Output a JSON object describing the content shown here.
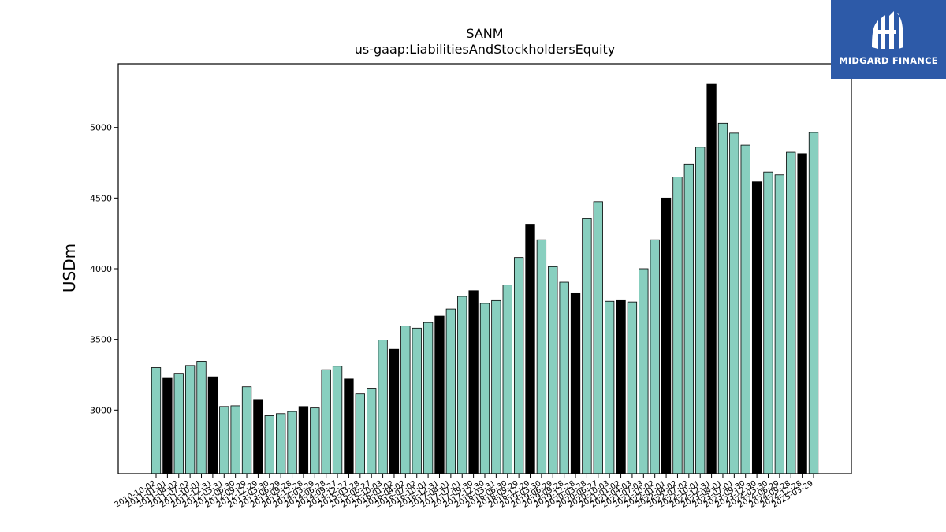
{
  "brand": {
    "name": "MIDGARD FINANCE",
    "accent": "#2d5aa8"
  },
  "chart_data": {
    "type": "bar",
    "title": "SANM",
    "subtitle": "us-gaap:LiabilitiesAndStockholdersEquity",
    "ylabel": "USDm",
    "xlabel": "",
    "ylim": [
      2550,
      5450
    ],
    "yticks": [
      3000,
      3500,
      4000,
      4500,
      5000
    ],
    "colors": {
      "quarter": "#88cfbf",
      "fiscal_year_end": "#000000",
      "edge": "#000000"
    },
    "grid": false,
    "categories": [
      "2010-10-02",
      "2011-01-01",
      "2011-04-02",
      "2011-07-02",
      "2011-10-01",
      "2011-12-31",
      "2012-03-31",
      "2012-06-30",
      "2012-09-29",
      "2012-12-29",
      "2013-03-30",
      "2013-06-29",
      "2013-09-28",
      "2013-12-28",
      "2014-03-29",
      "2014-06-28",
      "2014-09-27",
      "2014-12-27",
      "2015-03-28",
      "2015-06-27",
      "2015-10-03",
      "2016-01-02",
      "2016-04-02",
      "2016-07-02",
      "2016-10-01",
      "2016-12-31",
      "2017-04-01",
      "2017-07-01",
      "2017-09-30",
      "2017-12-30",
      "2018-03-31",
      "2018-06-30",
      "2018-09-29",
      "2018-12-29",
      "2019-03-30",
      "2019-06-29",
      "2019-09-28",
      "2019-12-28",
      "2020-03-28",
      "2020-06-27",
      "2020-10-03",
      "2021-01-02",
      "2021-04-03",
      "2021-07-03",
      "2021-10-02",
      "2022-01-01",
      "2022-04-02",
      "2022-07-02",
      "2022-10-01",
      "2022-12-31",
      "2023-04-01",
      "2023-07-01",
      "2023-09-30",
      "2023-12-30",
      "2024-03-30",
      "2024-06-29",
      "2024-09-28",
      "2024-12-28",
      "2025-03-29"
    ],
    "values": [
      3300,
      3230,
      3260,
      3315,
      3345,
      3235,
      3025,
      3030,
      3165,
      3075,
      2960,
      2975,
      2990,
      3025,
      3015,
      3285,
      3310,
      3220,
      3115,
      3155,
      3495,
      3430,
      3595,
      3580,
      3620,
      3665,
      3715,
      3805,
      3845,
      3755,
      3775,
      3885,
      4080,
      4315,
      4205,
      4015,
      3905,
      3825,
      4355,
      4475,
      3770,
      3775,
      3765,
      4000,
      4205,
      4500,
      4650,
      4740,
      4860,
      5310,
      5030,
      4960,
      4875,
      4615,
      4685,
      4665,
      4825,
      4815,
      4965
    ],
    "highlight": [
      false,
      true,
      false,
      false,
      false,
      true,
      false,
      false,
      false,
      true,
      false,
      false,
      false,
      true,
      false,
      false,
      false,
      true,
      false,
      false,
      false,
      true,
      false,
      false,
      false,
      true,
      false,
      false,
      true,
      false,
      false,
      false,
      false,
      true,
      false,
      false,
      false,
      true,
      false,
      false,
      false,
      true,
      false,
      false,
      false,
      true,
      false,
      false,
      false,
      true,
      false,
      false,
      false,
      true,
      false,
      false,
      false,
      true,
      false
    ]
  }
}
